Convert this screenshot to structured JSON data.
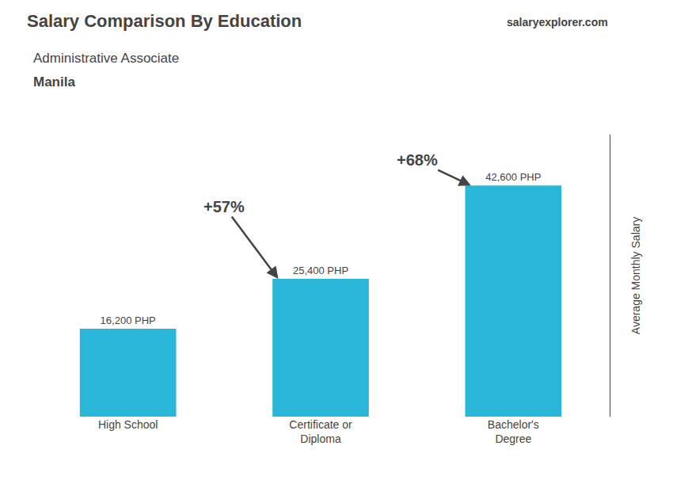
{
  "chart_data": {
    "type": "bar",
    "title": "Salary Comparison By Education",
    "subtitle": [
      "Administrative Associate",
      "Manila"
    ],
    "source": "salaryexplorer.com",
    "categories": [
      "High School",
      "Certificate or\nDiploma",
      "Bachelor's\nDegree"
    ],
    "values": [
      16200,
      25400,
      42600
    ],
    "value_labels": [
      "16,200 PHP",
      "25,400 PHP",
      "42,600 PHP"
    ],
    "data_labels": true,
    "color": "#29b6d8",
    "ylabel": "Average Monthly Salary",
    "ylim": [
      0,
      52000
    ],
    "tick_labels": "x",
    "grid": false,
    "annotations": [
      {
        "text": "+57%",
        "from": "High School",
        "to": "Certificate or\nDiploma"
      },
      {
        "text": "+68%",
        "from": "Certificate or\nDiploma",
        "to": "Bachelor's\nDegree"
      }
    ]
  }
}
